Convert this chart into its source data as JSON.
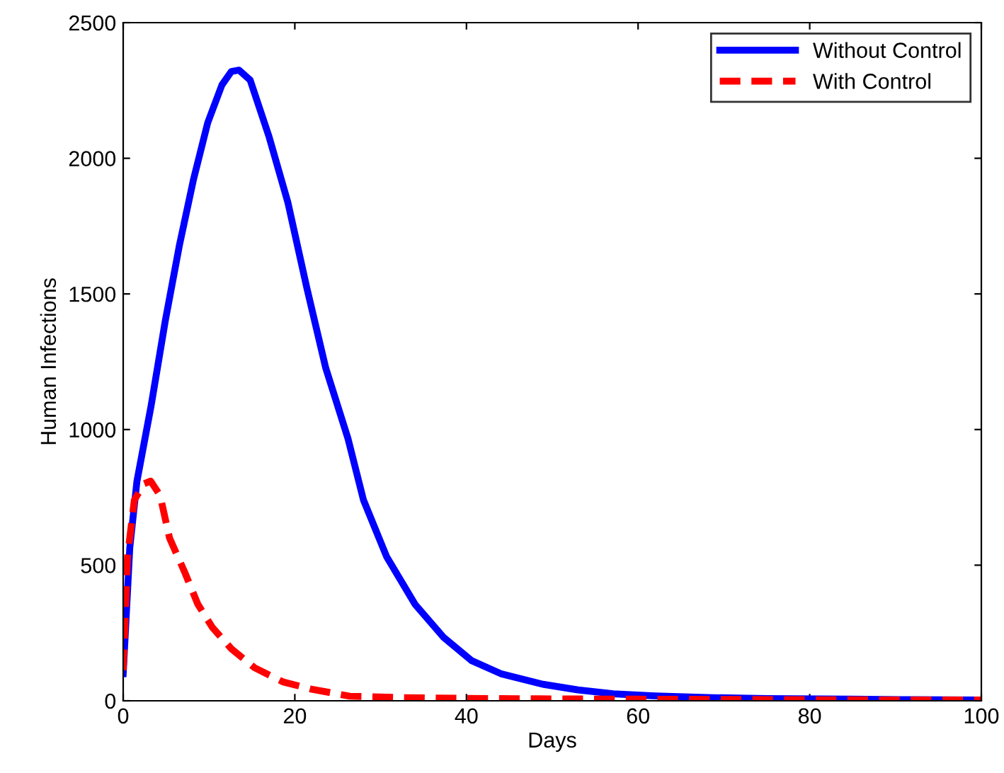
{
  "chart_data": {
    "type": "line",
    "xlabel": "Days",
    "ylabel": "Human Infections",
    "xlim": [
      0,
      100
    ],
    "ylim": [
      0,
      2500
    ],
    "xticks": [
      0,
      20,
      40,
      60,
      80,
      100
    ],
    "yticks": [
      0,
      500,
      1000,
      1500,
      2000,
      2500
    ],
    "legend": "top right",
    "grid": false,
    "marker": "none",
    "series": [
      {
        "name": "Without Control",
        "color": "#0000ff",
        "line_style": "solid",
        "x": [
          0,
          0.77,
          1.6,
          3.25,
          4.9,
          6.55,
          8.2,
          9.85,
          11.5,
          12.6,
          13.5,
          14.8,
          17.0,
          19.2,
          21.4,
          23.6,
          26.2,
          28.0,
          30.7,
          34.0,
          37.3,
          40.6,
          44,
          48.9,
          53,
          57.1,
          62,
          68,
          75,
          84.6,
          92,
          100
        ],
        "values": [
          100,
          565,
          809,
          1087,
          1400,
          1679,
          1923,
          2131,
          2270,
          2320,
          2325,
          2288,
          2079,
          1836,
          1522,
          1227,
          966,
          740,
          531,
          356,
          235,
          148,
          100,
          61,
          40,
          26,
          18,
          12,
          8,
          6,
          4,
          3
        ]
      },
      {
        "name": "With Control",
        "color": "#ff0000",
        "line_style": "dashed",
        "x": [
          0,
          0.5,
          1.3,
          2.4,
          3.2,
          4.3,
          5.4,
          7.1,
          8.7,
          10.4,
          12.6,
          15.3,
          18.6,
          21.9,
          26.4,
          32,
          40,
          50,
          60,
          70,
          80,
          90,
          100
        ],
        "values": [
          113,
          531,
          740,
          800,
          810,
          757,
          600,
          479,
          356,
          270,
          192,
          122,
          70,
          43,
          17,
          12,
          9,
          7,
          6,
          5,
          4,
          3,
          3
        ]
      }
    ]
  }
}
